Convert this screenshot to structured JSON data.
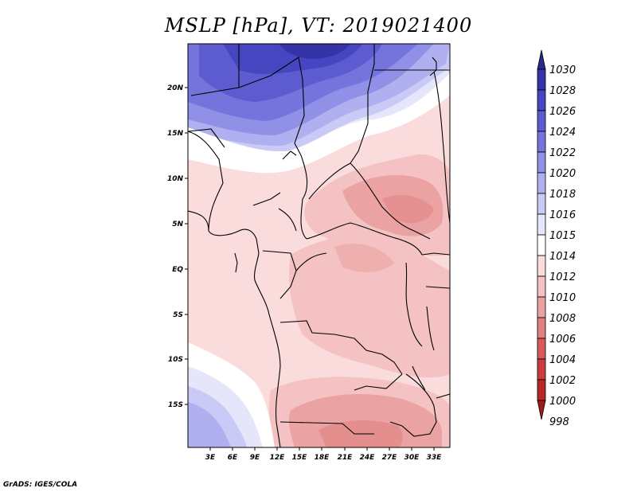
{
  "title": "MSLP [hPa], VT: 2019021400",
  "credit": "GrADS: IGES/COLA",
  "map": {
    "lat_labels": [
      "20N",
      "15N",
      "10N",
      "5N",
      "EQ",
      "5S",
      "10S",
      "15S"
    ],
    "lon_labels": [
      "3E",
      "6E",
      "9E",
      "12E",
      "15E",
      "18E",
      "21E",
      "24E",
      "27E",
      "30E",
      "33E"
    ]
  },
  "colorbar": {
    "levels": [
      "1030",
      "1028",
      "1026",
      "1024",
      "1022",
      "1020",
      "1018",
      "1016",
      "1015",
      "1014",
      "1012",
      "1010",
      "1008",
      "1006",
      "1004",
      "1002",
      "1000",
      "998"
    ],
    "colors": [
      "#2a2a8c",
      "#3434a8",
      "#4646c0",
      "#5c5cd0",
      "#7474dc",
      "#9090e6",
      "#b0b0f0",
      "#cacaf6",
      "#e6e6fa",
      "#ffffff",
      "#fadcdc",
      "#f4c2c2",
      "#eaa2a2",
      "#e08080",
      "#d85a5a",
      "#cc3c3c",
      "#b82828",
      "#a01c1c"
    ]
  }
}
